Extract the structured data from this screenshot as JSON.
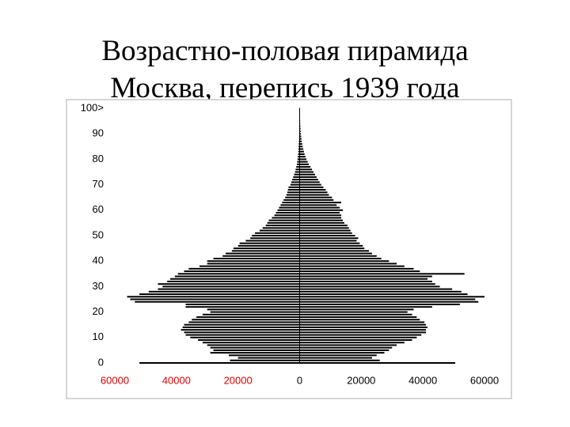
{
  "chart_data": {
    "type": "pyramid",
    "title": [
      "Возрастно-половая пирамида",
      "Москва, перепись 1939 года"
    ],
    "y": [
      0,
      1,
      2,
      3,
      4,
      5,
      6,
      7,
      8,
      9,
      10,
      11,
      12,
      13,
      14,
      15,
      16,
      17,
      18,
      19,
      20,
      21,
      22,
      23,
      24,
      25,
      26,
      27,
      28,
      29,
      30,
      31,
      32,
      33,
      34,
      35,
      36,
      37,
      38,
      39,
      40,
      41,
      42,
      43,
      44,
      45,
      46,
      47,
      48,
      49,
      50,
      51,
      52,
      53,
      54,
      55,
      56,
      57,
      58,
      59,
      60,
      61,
      62,
      63,
      64,
      65,
      66,
      67,
      68,
      69,
      70,
      71,
      72,
      73,
      74,
      75,
      76,
      77,
      78,
      79,
      80,
      81,
      82,
      83,
      84,
      85,
      86,
      87,
      88,
      89,
      90,
      91,
      92,
      93,
      94,
      95,
      96,
      97,
      98,
      99,
      100
    ],
    "series": [
      {
        "color": "#000000",
        "values": [
          -52000,
          -22600,
          -20000,
          -23000,
          -29000,
          -28000,
          -29000,
          -30000,
          -31500,
          -33000,
          -35500,
          -37000,
          -37500,
          -38500,
          -38000,
          -37500,
          -36000,
          -35000,
          -33500,
          -31500,
          -29000,
          -30000,
          -37000,
          -37000,
          -53500,
          -55000,
          -56000,
          -52000,
          -49000,
          -46000,
          -44500,
          -46000,
          -43000,
          -42000,
          -40500,
          -39500,
          -37500,
          -36000,
          -32500,
          -30000,
          -30000,
          -28000,
          -25000,
          -24000,
          -22000,
          -21500,
          -20000,
          -19500,
          -17500,
          -16000,
          -15500,
          -14500,
          -13000,
          -12000,
          -11000,
          -10500,
          -10000,
          -9000,
          -8200,
          -7700,
          -7200,
          -6700,
          -6200,
          -5700,
          -5200,
          -4700,
          -4300,
          -4000,
          -3800,
          -3600,
          -3000,
          -2700,
          -2400,
          -2100,
          -1800,
          -1500,
          -1300,
          -1100,
          -900,
          -800,
          -700,
          -600,
          -500,
          -450,
          -400,
          -350,
          -300,
          -250,
          -200,
          -180,
          -150,
          -120,
          -100,
          -90,
          -80,
          -70,
          -60,
          -50,
          -40,
          -30,
          -50
        ]
      },
      {
        "color": "#000000",
        "values": [
          50500,
          26000,
          23500,
          25000,
          27500,
          29000,
          30000,
          31500,
          34000,
          36500,
          38000,
          39500,
          41000,
          41000,
          41500,
          41000,
          40500,
          39000,
          38000,
          36500,
          35000,
          37000,
          43000,
          52000,
          58000,
          57000,
          60000,
          54500,
          52500,
          49500,
          45500,
          44000,
          43000,
          41500,
          43000,
          53500,
          39000,
          37000,
          34000,
          31500,
          29000,
          26500,
          25000,
          23500,
          22500,
          21000,
          20500,
          19500,
          18500,
          19000,
          18000,
          17000,
          16500,
          16000,
          15500,
          14500,
          14000,
          13500,
          13500,
          13000,
          14000,
          13000,
          12000,
          13500,
          11000,
          10500,
          9500,
          9000,
          8500,
          7700,
          7000,
          6500,
          6000,
          5500,
          5000,
          4500,
          4000,
          3500,
          3000,
          2600,
          2200,
          1900,
          1600,
          1400,
          1200,
          1000,
          850,
          700,
          600,
          500,
          400,
          330,
          280,
          230,
          190,
          160,
          130,
          110,
          90,
          70,
          100
        ]
      }
    ],
    "xlim": [
      -60000,
      60000
    ],
    "xticks": [
      {
        "value": -60000,
        "label": "60000"
      },
      {
        "value": -40000,
        "label": "40000"
      },
      {
        "value": -20000,
        "label": "20000"
      },
      0,
      20000,
      40000,
      60000
    ],
    "negative_tick_color": "#e00000",
    "ylim": [
      0,
      100
    ],
    "yticks": [
      0,
      10,
      20,
      30,
      40,
      50,
      60,
      70,
      80,
      90,
      {
        "value": 100,
        "label": "100>"
      }
    ],
    "grid": false
  }
}
